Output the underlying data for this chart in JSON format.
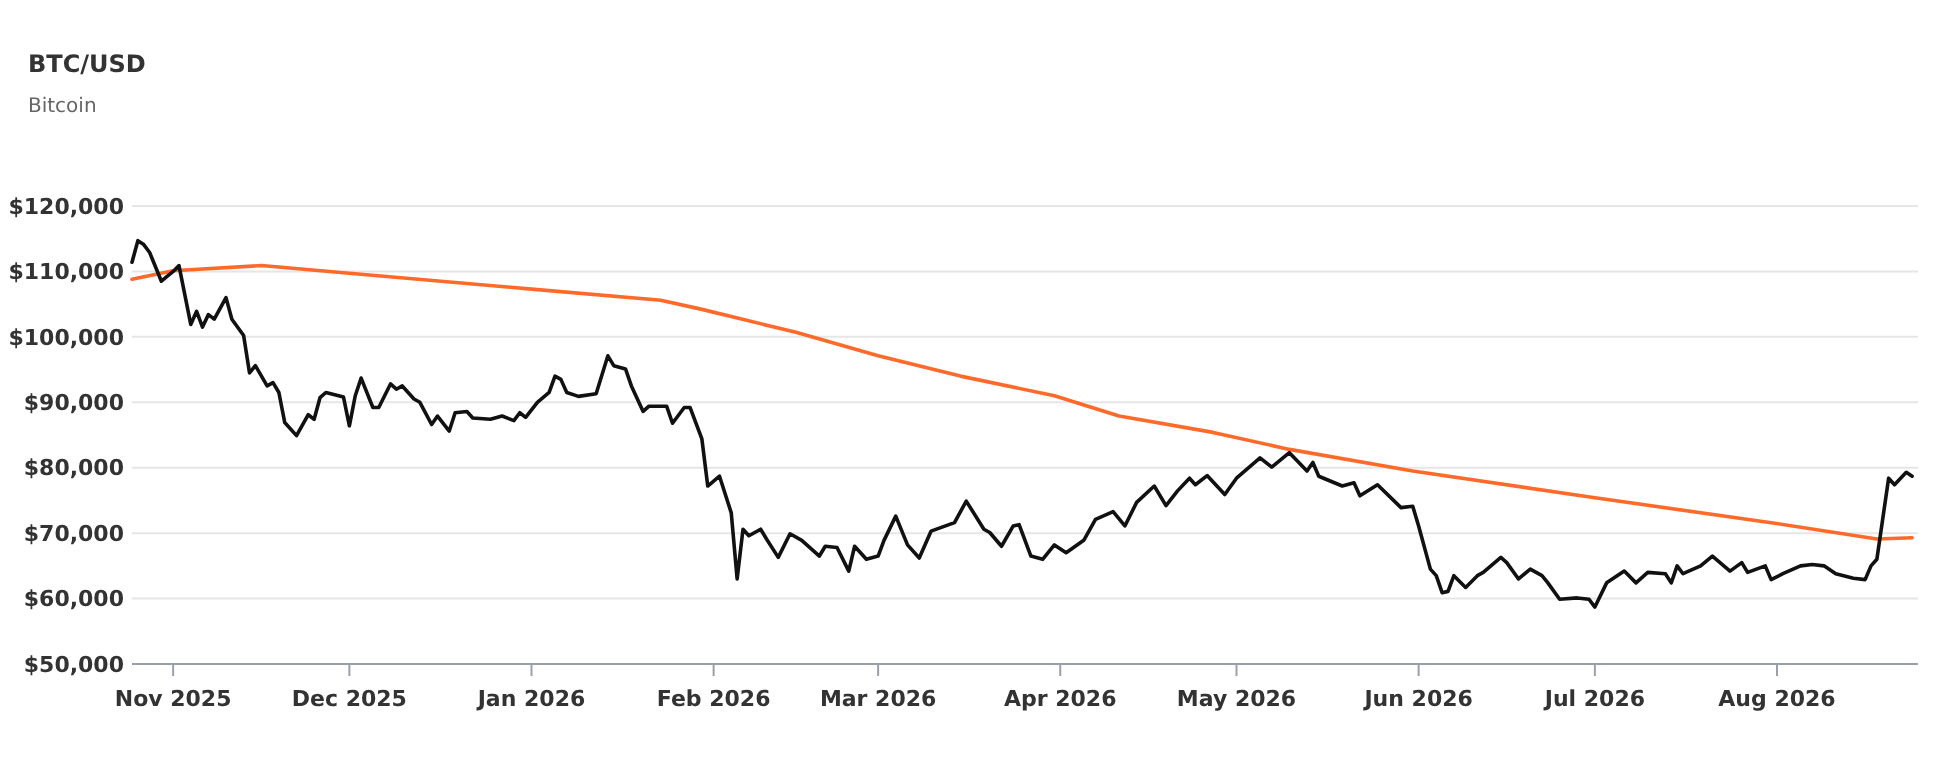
{
  "chart_data": {
    "type": "line",
    "title": "BTC/USD",
    "subtitle": "Bitcoin",
    "xlim": [
      "2025-10-25",
      "2026-08-25"
    ],
    "xticks": [
      {
        "value": "2025-11-01",
        "label": "Nov 2025"
      },
      {
        "value": "2025-12-01",
        "label": "Dec 2025"
      },
      {
        "value": "2026-01-01",
        "label": "Jan 2026"
      },
      {
        "value": "2026-02-01",
        "label": "Feb 2026"
      },
      {
        "value": "2026-03-01",
        "label": "Mar 2026"
      },
      {
        "value": "2026-04-01",
        "label": "Apr 2026"
      },
      {
        "value": "2026-05-01",
        "label": "May 2026"
      },
      {
        "value": "2026-06-01",
        "label": "Jun 2026"
      },
      {
        "value": "2026-07-01",
        "label": "Jul 2026"
      },
      {
        "value": "2026-08-01",
        "label": "Aug 2026"
      }
    ],
    "ylim": [
      50000,
      120000
    ],
    "yticks": [
      {
        "value": 50000,
        "label": "$50,000"
      },
      {
        "value": 60000,
        "label": "$60,000"
      },
      {
        "value": 70000,
        "label": "$70,000"
      },
      {
        "value": 80000,
        "label": "$80,000"
      },
      {
        "value": 90000,
        "label": "$90,000"
      },
      {
        "value": 100000,
        "label": "$100,000"
      },
      {
        "value": 110000,
        "label": "$110,000"
      },
      {
        "value": 120000,
        "label": "$120,000"
      }
    ],
    "grid": "y",
    "series": [
      {
        "color": "#ff6a2b",
        "x": [
          "2025-10-25",
          "2025-11-01",
          "2025-11-16",
          "2025-11-30",
          "2026-01-01",
          "2026-01-23",
          "2026-01-30",
          "2026-02-15",
          "2026-03-01",
          "2026-03-15",
          "2026-03-31",
          "2026-04-11",
          "2026-04-27",
          "2026-05-10",
          "2026-05-31",
          "2026-07-01",
          "2026-07-31",
          "2026-08-18",
          "2026-08-24"
        ],
        "values": [
          108800,
          110100,
          110900,
          109800,
          107300,
          105600,
          104200,
          100700,
          97100,
          94000,
          91000,
          87900,
          85400,
          82800,
          79500,
          75400,
          71600,
          69100,
          69300
        ]
      },
      {
        "color": "#111111",
        "x": [
          "2025-10-25",
          "2025-10-26",
          "2025-10-27",
          "2025-10-28",
          "2025-10-30",
          "2025-11-01",
          "2025-11-02",
          "2025-11-04",
          "2025-11-05",
          "2025-11-06",
          "2025-11-07",
          "2025-11-08",
          "2025-11-10",
          "2025-11-11",
          "2025-11-13",
          "2025-11-14",
          "2025-11-15",
          "2025-11-17",
          "2025-11-18",
          "2025-11-19",
          "2025-11-20",
          "2025-11-22",
          "2025-11-24",
          "2025-11-25",
          "2025-11-26",
          "2025-11-27",
          "2025-11-30",
          "2025-12-01",
          "2025-12-02",
          "2025-12-03",
          "2025-12-05",
          "2025-12-06",
          "2025-12-08",
          "2025-12-09",
          "2025-12-10",
          "2025-12-12",
          "2025-12-13",
          "2025-12-15",
          "2025-12-16",
          "2025-12-18",
          "2025-12-19",
          "2025-12-21",
          "2025-12-22",
          "2025-12-25",
          "2025-12-27",
          "2025-12-29",
          "2025-12-30",
          "2025-12-31",
          "2026-01-02",
          "2026-01-04",
          "2026-01-05",
          "2026-01-06",
          "2026-01-07",
          "2026-01-09",
          "2026-01-12",
          "2026-01-14",
          "2026-01-15",
          "2026-01-17",
          "2026-01-18",
          "2026-01-20",
          "2026-01-21",
          "2026-01-24",
          "2026-01-25",
          "2026-01-27",
          "2026-01-28",
          "2026-01-30",
          "2026-01-31",
          "2026-02-02",
          "2026-02-04",
          "2026-02-05",
          "2026-02-06",
          "2026-02-07",
          "2026-02-09",
          "2026-02-10",
          "2026-02-12",
          "2026-02-14",
          "2026-02-16",
          "2026-02-19",
          "2026-02-20",
          "2026-02-22",
          "2026-02-24",
          "2026-02-25",
          "2026-02-27",
          "2026-03-01",
          "2026-03-02",
          "2026-03-04",
          "2026-03-06",
          "2026-03-08",
          "2026-03-10",
          "2026-03-14",
          "2026-03-16",
          "2026-03-19",
          "2026-03-20",
          "2026-03-22",
          "2026-03-24",
          "2026-03-25",
          "2026-03-27",
          "2026-03-29",
          "2026-03-31",
          "2026-04-02",
          "2026-04-05",
          "2026-04-07",
          "2026-04-10",
          "2026-04-12",
          "2026-04-14",
          "2026-04-17",
          "2026-04-19",
          "2026-04-21",
          "2026-04-23",
          "2026-04-24",
          "2026-04-26",
          "2026-04-29",
          "2026-05-01",
          "2026-05-05",
          "2026-05-07",
          "2026-05-10",
          "2026-05-13",
          "2026-05-14",
          "2026-05-15",
          "2026-05-19",
          "2026-05-21",
          "2026-05-22",
          "2026-05-25",
          "2026-05-29",
          "2026-05-31",
          "2026-06-01",
          "2026-06-03",
          "2026-06-04",
          "2026-06-05",
          "2026-06-06",
          "2026-06-07",
          "2026-06-09",
          "2026-06-11",
          "2026-06-12",
          "2026-06-15",
          "2026-06-16",
          "2026-06-18",
          "2026-06-20",
          "2026-06-22",
          "2026-06-23",
          "2026-06-25",
          "2026-06-28",
          "2026-06-30",
          "2026-07-01",
          "2026-07-03",
          "2026-07-06",
          "2026-07-08",
          "2026-07-10",
          "2026-07-13",
          "2026-07-14",
          "2026-07-15",
          "2026-07-16",
          "2026-07-19",
          "2026-07-21",
          "2026-07-24",
          "2026-07-26",
          "2026-07-27",
          "2026-07-30",
          "2026-07-31",
          "2026-08-02",
          "2026-08-05",
          "2026-08-07",
          "2026-08-09",
          "2026-08-11",
          "2026-08-14",
          "2026-08-16",
          "2026-08-17",
          "2026-08-18",
          "2026-08-20",
          "2026-08-21",
          "2026-08-23",
          "2026-08-24"
        ],
        "values": [
          111400,
          114700,
          114100,
          112900,
          108500,
          110000,
          110900,
          101900,
          103900,
          101500,
          103400,
          102700,
          106000,
          102700,
          100200,
          94500,
          95600,
          92500,
          93000,
          91500,
          86900,
          84900,
          88100,
          87400,
          90700,
          91500,
          90800,
          86400,
          91000,
          93700,
          89200,
          89200,
          92800,
          92000,
          92500,
          90500,
          90000,
          86600,
          87900,
          85600,
          88400,
          88600,
          87600,
          87400,
          87900,
          87200,
          88400,
          87700,
          90000,
          91500,
          94000,
          93500,
          91500,
          90900,
          91300,
          97100,
          95600,
          95100,
          92500,
          88600,
          89400,
          89400,
          86800,
          89200,
          89200,
          84400,
          77200,
          78700,
          73100,
          63000,
          70600,
          69600,
          70600,
          69100,
          66300,
          69900,
          68900,
          66500,
          68000,
          67800,
          64200,
          68000,
          66000,
          66500,
          68900,
          72600,
          68200,
          66200,
          70300,
          71600,
          74900,
          70600,
          70100,
          68000,
          71100,
          71300,
          66500,
          66000,
          68200,
          67000,
          68900,
          72100,
          73300,
          71100,
          74700,
          77200,
          74200,
          76500,
          78400,
          77400,
          78800,
          75900,
          78400,
          81500,
          80100,
          82300,
          79500,
          80800,
          78700,
          77200,
          77700,
          75700,
          77400,
          73900,
          74100,
          71100,
          64500,
          63500,
          60900,
          61100,
          63500,
          61700,
          63500,
          64000,
          66300,
          65500,
          63000,
          64500,
          63500,
          62400,
          59900,
          60100,
          59900,
          58700,
          62400,
          64200,
          62400,
          64000,
          63800,
          62400,
          65000,
          63800,
          65000,
          66500,
          64200,
          65500,
          64000,
          65000,
          62900,
          63800,
          65000,
          65200,
          65000,
          63800,
          63100,
          62900,
          65000,
          66000,
          78400,
          77400,
          79300,
          78700
        ]
      }
    ]
  }
}
